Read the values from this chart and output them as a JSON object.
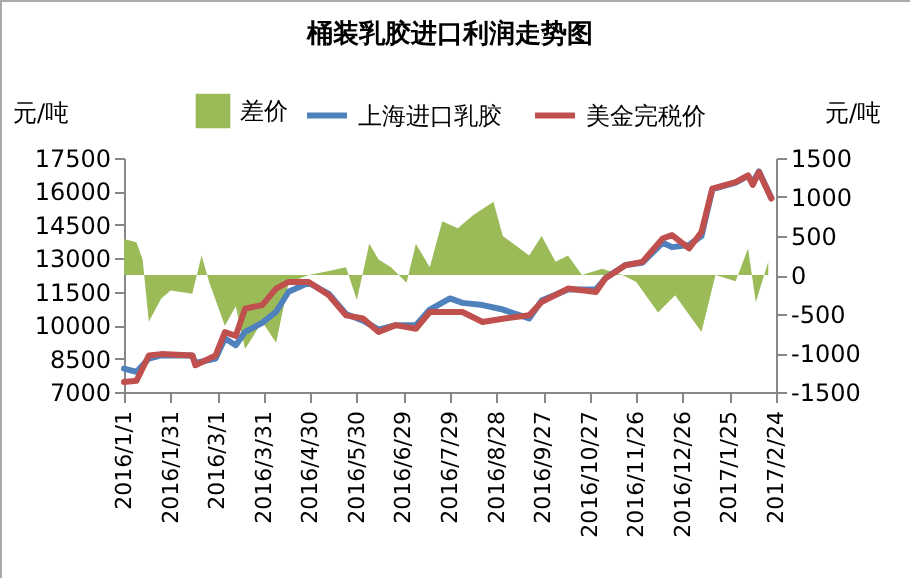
{
  "chart_data": {
    "type": "line",
    "title": "桶装乳胶进口利润走势图",
    "ylabel": "元/吨",
    "y2label": "元/吨",
    "x": [
      "2016-01-01",
      "2016-01-09",
      "2016-01-17",
      "2016-01-25",
      "2016-02-14",
      "2016-02-16",
      "2016-02-29",
      "2016-03-06",
      "2016-03-13",
      "2016-03-19",
      "2016-03-30",
      "2016-04-08",
      "2016-04-16",
      "2016-04-29",
      "2016-05-12",
      "2016-05-23",
      "2016-06-03",
      "2016-06-13",
      "2016-06-24",
      "2016-07-07",
      "2016-07-16",
      "2016-07-29",
      "2016-08-06",
      "2016-08-19",
      "2016-09-01",
      "2016-09-18",
      "2016-09-26",
      "2016-10-13",
      "2016-10-31",
      "2016-11-06",
      "2016-11-19",
      "2016-11-30",
      "2016-12-13",
      "2016-12-19",
      "2016-12-30",
      "2017-01-07",
      "2017-01-14",
      "2017-01-29",
      "2017-02-06",
      "2017-02-09",
      "2017-02-13",
      "2017-02-21"
    ],
    "series": [
      {
        "name": "差价",
        "type": "area",
        "axis": "y2",
        "color": "#9bbb59",
        "x": [
          "2016-01-01",
          "2016-01-09",
          "2016-01-13",
          "2016-01-17",
          "2016-01-25",
          "2016-01-31",
          "2016-02-14",
          "2016-02-20",
          "2016-02-25",
          "2016-03-06",
          "2016-03-13",
          "2016-03-19",
          "2016-03-30",
          "2016-04-08",
          "2016-04-16",
          "2016-04-29",
          "2016-05-12",
          "2016-05-23",
          "2016-05-30",
          "2016-06-07",
          "2016-06-13",
          "2016-06-21",
          "2016-07-01",
          "2016-07-07",
          "2016-07-16",
          "2016-07-24",
          "2016-08-03",
          "2016-08-13",
          "2016-08-26",
          "2016-09-01",
          "2016-09-18",
          "2016-09-26",
          "2016-10-05",
          "2016-10-13",
          "2016-10-22",
          "2016-11-04",
          "2016-11-17",
          "2016-11-26",
          "2016-12-10",
          "2016-12-21",
          "2017-01-07",
          "2017-01-16",
          "2017-01-29",
          "2017-02-06",
          "2017-02-11",
          "2017-02-19"
        ],
        "values": [
          460,
          420,
          200,
          -600,
          -300,
          -200,
          -240,
          250,
          -100,
          -650,
          -400,
          -950,
          -600,
          -870,
          -100,
          0,
          50,
          100,
          -320,
          400,
          200,
          100,
          -100,
          400,
          100,
          690,
          600,
          770,
          940,
          500,
          250,
          500,
          170,
          250,
          0,
          80,
          0,
          -90,
          -480,
          -260,
          -730,
          0,
          -80,
          340,
          -350,
          170
        ]
      },
      {
        "name": "上海进口乳胶",
        "color": "#4f81bd",
        "values": [
          8050,
          7900,
          8500,
          8640,
          8640,
          8300,
          8500,
          9400,
          9100,
          9700,
          10100,
          10600,
          11500,
          11900,
          11400,
          10500,
          10200,
          9800,
          10000,
          10000,
          10700,
          11200,
          11000,
          10900,
          10700,
          10300,
          11100,
          11600,
          11600,
          12100,
          12700,
          12800,
          13700,
          13500,
          13600,
          14000,
          16100,
          16400,
          16700,
          16400,
          16900,
          15700
        ]
      },
      {
        "name": "美金完税价",
        "color": "#c0504d",
        "values": [
          7450,
          7500,
          8640,
          8700,
          8640,
          8200,
          8640,
          9690,
          9520,
          10740,
          10900,
          11640,
          11940,
          11940,
          11340,
          10440,
          10300,
          9690,
          10000,
          9840,
          10590,
          10590,
          10590,
          10140,
          10290,
          10440,
          11040,
          11640,
          11490,
          12090,
          12690,
          12840,
          13890,
          14040,
          13440,
          14180,
          16130,
          16420,
          16720,
          16290,
          16870,
          15680
        ]
      }
    ],
    "xlim": [
      "2016-01-01",
      "2017-02-24"
    ],
    "xticks": [
      {
        "value": "2016-01-01",
        "label": "2016/1/1"
      },
      {
        "value": "2016-01-31",
        "label": "2016/1/31"
      },
      {
        "value": "2016-03-01",
        "label": "2016/3/1"
      },
      {
        "value": "2016-03-31",
        "label": "2016/3/31"
      },
      {
        "value": "2016-04-30",
        "label": "2016/4/30"
      },
      {
        "value": "2016-05-30",
        "label": "2016/5/30"
      },
      {
        "value": "2016-06-29",
        "label": "2016/6/29"
      },
      {
        "value": "2016-07-29",
        "label": "2016/7/29"
      },
      {
        "value": "2016-08-28",
        "label": "2016/8/28"
      },
      {
        "value": "2016-09-27",
        "label": "2016/9/27"
      },
      {
        "value": "2016-10-27",
        "label": "2016/10/27"
      },
      {
        "value": "2016-11-26",
        "label": "2016/11/26"
      },
      {
        "value": "2016-12-26",
        "label": "2016/12/26"
      },
      {
        "value": "2017-01-25",
        "label": "2017/1/25"
      },
      {
        "value": "2017-02-24",
        "label": "2017/2/24"
      }
    ],
    "ylim": [
      7000,
      17500
    ],
    "yticks": [
      7000,
      8500,
      10000,
      11500,
      13000,
      14500,
      16000,
      17500
    ],
    "y2lim": [
      -1500,
      1500
    ],
    "y2ticks": [
      -1500,
      -1000,
      -500,
      0,
      500,
      1000,
      1500
    ],
    "legend": "top",
    "grid": false,
    "line_style": "solid",
    "marker": "none"
  }
}
